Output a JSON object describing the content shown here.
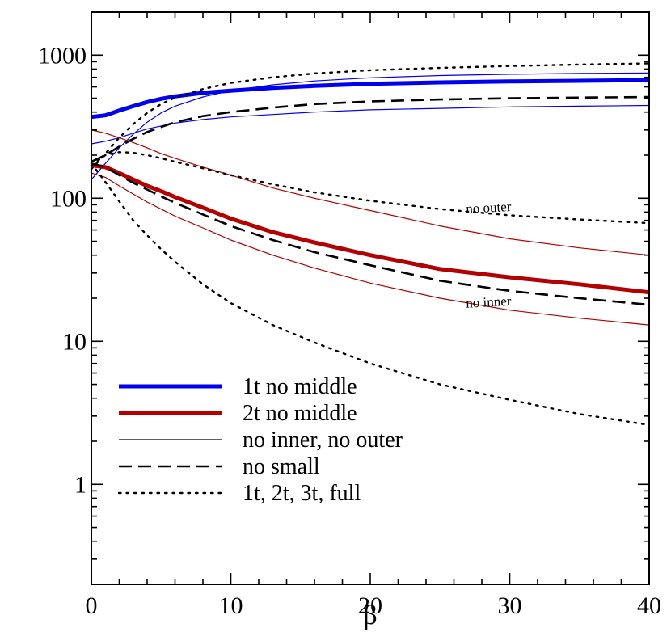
{
  "chart_data": {
    "type": "line",
    "title": "",
    "xlabel": "β",
    "ylabel": "",
    "xlim": [
      0,
      40
    ],
    "ylim": [
      0.2,
      2000
    ],
    "yscale": "log",
    "xticks": [
      0,
      10,
      20,
      30,
      40
    ],
    "xtick_labels": [
      "0",
      "10",
      "20",
      "30",
      "40"
    ],
    "yticks": [
      1,
      10,
      100,
      1000
    ],
    "ytick_labels": [
      "1",
      "10",
      "100",
      "1000"
    ],
    "grid": false,
    "legend_position": "bottom-left",
    "legend": [
      {
        "label": "1t no middle",
        "color": "#0000ee",
        "style": "solid-thick"
      },
      {
        "label": "2t no middle",
        "color": "#b30000",
        "style": "solid-thick"
      },
      {
        "label": "no inner, no outer",
        "color": "#000000",
        "style": "solid-thin"
      },
      {
        "label": "no small",
        "color": "#000000",
        "style": "dashed"
      },
      {
        "label": "1t, 2t, 3t, full",
        "color": "#000000",
        "style": "dotted"
      }
    ],
    "annotations": [
      {
        "text": "no outer",
        "x": 28.5,
        "y": 80
      },
      {
        "text": "no inner",
        "x": 28.5,
        "y": 17.5
      }
    ],
    "series": [
      {
        "color": "#0000ee",
        "style": "solid-thick",
        "x": [
          0,
          1,
          2,
          3,
          4,
          5,
          6,
          8,
          10,
          13,
          16,
          20,
          25,
          30,
          35,
          40
        ],
        "y": [
          370,
          380,
          410,
          440,
          470,
          495,
          515,
          545,
          565,
          590,
          610,
          630,
          645,
          655,
          662,
          670
        ]
      },
      {
        "color": "#0000ee",
        "style": "solid-thin",
        "x": [
          0,
          1,
          2,
          3,
          4,
          5,
          6,
          8,
          10,
          13,
          16,
          20,
          25,
          30,
          35,
          40
        ],
        "y": [
          135,
          175,
          225,
          280,
          340,
          395,
          440,
          510,
          565,
          620,
          660,
          695,
          720,
          735,
          745,
          750
        ]
      },
      {
        "color": "#0000ee",
        "style": "solid-thin",
        "x": [
          0,
          1,
          2,
          3,
          4,
          5,
          6,
          8,
          10,
          13,
          16,
          20,
          25,
          30,
          35,
          40
        ],
        "y": [
          240,
          250,
          265,
          285,
          305,
          320,
          335,
          355,
          370,
          385,
          400,
          415,
          425,
          435,
          440,
          445
        ]
      },
      {
        "color": "#000000",
        "style": "dashed",
        "x": [
          0,
          1,
          2,
          3,
          4,
          5,
          6,
          8,
          10,
          13,
          16,
          20,
          25,
          30,
          35,
          40
        ],
        "y": [
          180,
          200,
          230,
          260,
          290,
          315,
          340,
          375,
          400,
          430,
          455,
          475,
          490,
          500,
          505,
          510
        ]
      },
      {
        "color": "#000000",
        "style": "dotted",
        "x": [
          0,
          1,
          2,
          3,
          4,
          5,
          6,
          8,
          10,
          13,
          16,
          20,
          25,
          30,
          35,
          40
        ],
        "y": [
          160,
          205,
          265,
          330,
          395,
          455,
          505,
          580,
          640,
          700,
          745,
          785,
          815,
          840,
          860,
          875
        ]
      },
      {
        "color": "#b30000",
        "style": "solid-thick",
        "x": [
          0,
          1,
          2,
          3,
          4,
          5,
          6,
          8,
          10,
          13,
          16,
          20,
          25,
          30,
          35,
          40
        ],
        "y": [
          170,
          165,
          150,
          135,
          122,
          112,
          102,
          86,
          72,
          58,
          49,
          40,
          32,
          28,
          25,
          22
        ]
      },
      {
        "color": "#b30000",
        "style": "solid-thin",
        "x": [
          0,
          1,
          2,
          3,
          4,
          5,
          6,
          8,
          10,
          13,
          16,
          20,
          25,
          30,
          35,
          40
        ],
        "y": [
          300,
          285,
          265,
          245,
          225,
          205,
          190,
          165,
          145,
          118,
          100,
          82,
          64,
          52,
          45,
          40
        ]
      },
      {
        "color": "#b30000",
        "style": "solid-thin",
        "x": [
          0,
          1,
          2,
          3,
          4,
          5,
          6,
          8,
          10,
          13,
          16,
          20,
          25,
          30,
          35,
          40
        ],
        "y": [
          150,
          140,
          122,
          107,
          94,
          84,
          75,
          62,
          51,
          40,
          32.5,
          25.5,
          20,
          16.5,
          14.5,
          13
        ]
      },
      {
        "color": "#000000",
        "style": "dashed",
        "x": [
          0,
          1,
          2,
          3,
          4,
          5,
          6,
          8,
          10,
          13,
          16,
          20,
          25,
          30,
          35,
          40
        ],
        "y": [
          175,
          165,
          145,
          128,
          115,
          103,
          93,
          77,
          64,
          51,
          42,
          34,
          26.5,
          22.5,
          20,
          18
        ]
      },
      {
        "color": "#000000",
        "style": "dotted",
        "x": [
          0,
          1,
          2,
          3,
          4,
          5,
          6,
          8,
          10,
          13,
          16,
          20,
          25,
          30,
          35,
          40
        ],
        "y": [
          170,
          200,
          210,
          208,
          200,
          190,
          180,
          162,
          145,
          125,
          110,
          96,
          84,
          76,
          71,
          67
        ]
      },
      {
        "color": "#000000",
        "style": "dotted",
        "x": [
          0,
          1,
          2,
          3,
          4,
          5,
          6,
          8,
          10,
          13,
          16,
          20,
          25,
          30,
          35,
          40
        ],
        "y": [
          175,
          130,
          95,
          70,
          55,
          44,
          36,
          25,
          18.5,
          13,
          9.8,
          7,
          5,
          3.9,
          3.1,
          2.6
        ]
      }
    ]
  }
}
